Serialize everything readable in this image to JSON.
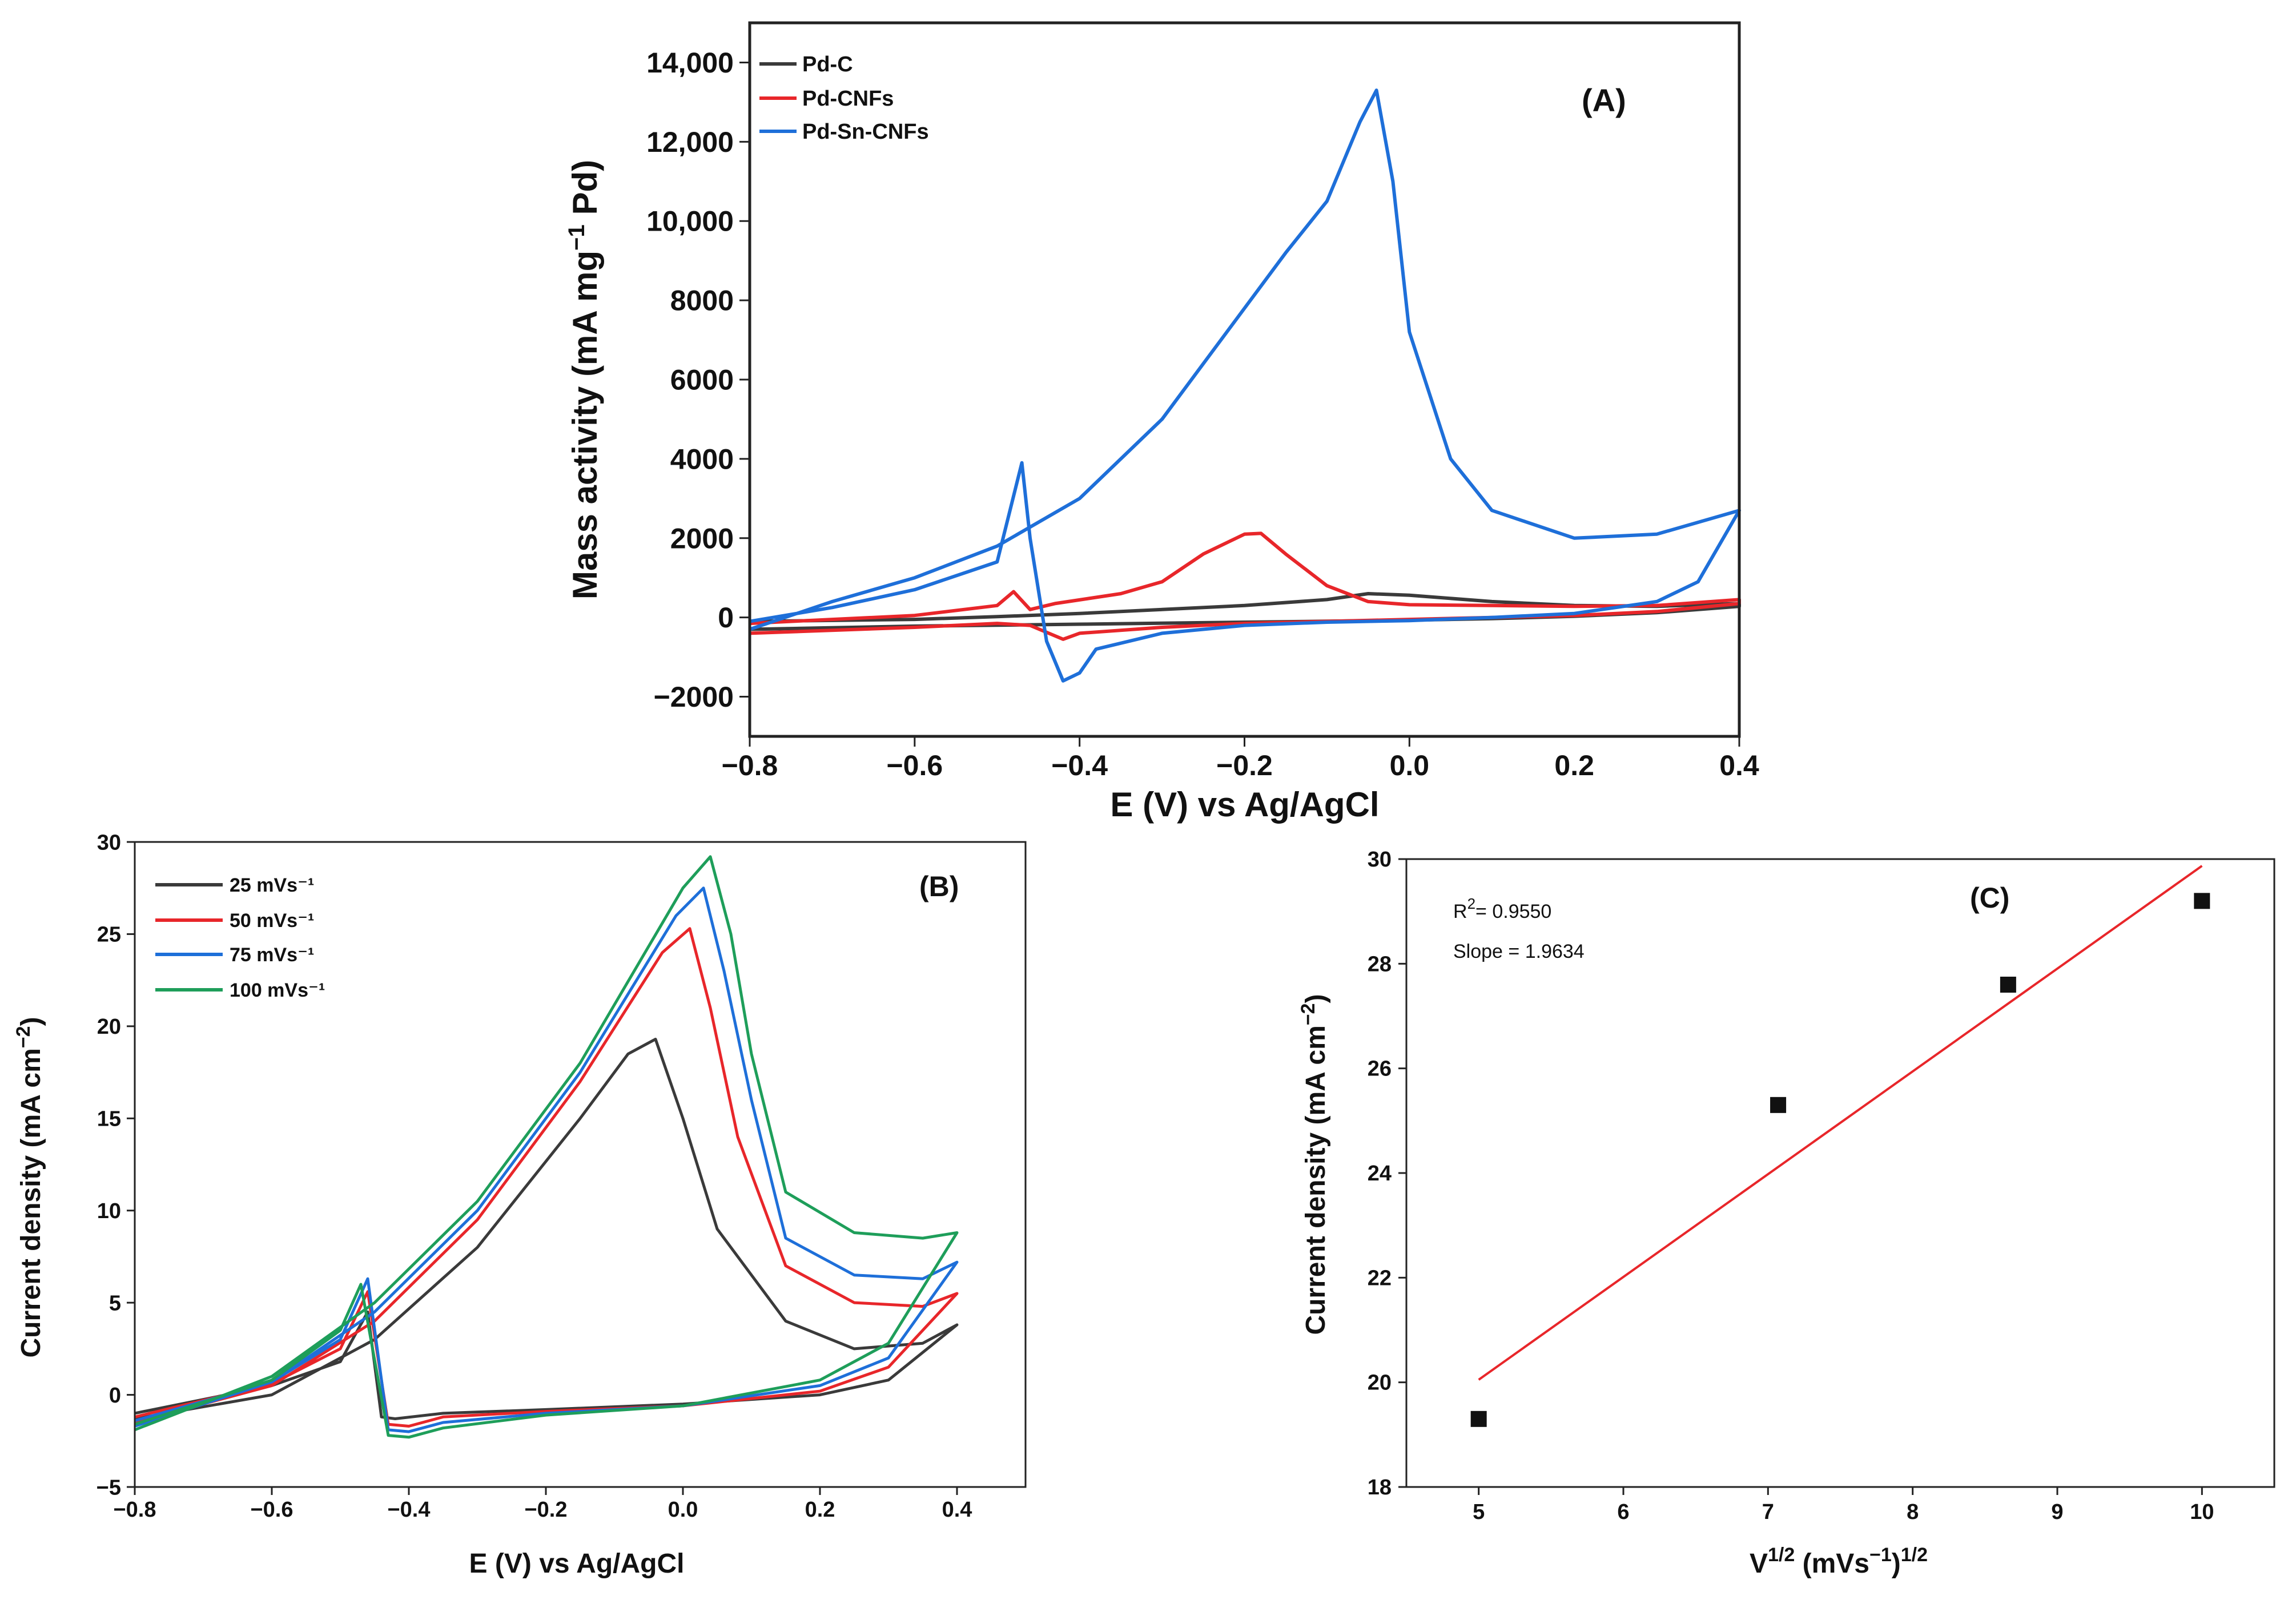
{
  "chart_data": [
    {
      "panel": "(A)",
      "type": "line",
      "xlabel": "E (V) vs Ag/AgCl",
      "ylabel": "Mass activity (mA mg⁻¹ Pd)",
      "xlim": [
        -0.8,
        0.4
      ],
      "ylim": [
        -3000,
        15000
      ],
      "xticks": [
        -0.8,
        -0.6,
        -0.4,
        -0.2,
        0.0,
        0.4
      ],
      "xtick_labels": [
        "−0.8",
        "−0.6",
        "−0.4",
        "−0.2",
        "0.0",
        "0.4"
      ],
      "extra_xtick_labels": [
        {
          "x": 0.2,
          "label": "0.2"
        }
      ],
      "yticks": [
        -2000,
        0,
        2000,
        4000,
        6000,
        8000,
        10000,
        12000,
        14000
      ],
      "ytick_labels": [
        "−2000",
        "0",
        "2000",
        "4000",
        "6000",
        "8000",
        "10,000",
        "12,000",
        "14,000"
      ],
      "legend_position": "top-left",
      "series": [
        {
          "name": "Pd-C",
          "color": "#3a3a3a",
          "points": [
            [
              -0.8,
              -100
            ],
            [
              -0.6,
              -50
            ],
            [
              -0.5,
              20
            ],
            [
              -0.4,
              100
            ],
            [
              -0.3,
              200
            ],
            [
              -0.2,
              300
            ],
            [
              -0.1,
              450
            ],
            [
              -0.05,
              600
            ],
            [
              0.0,
              560
            ],
            [
              0.1,
              400
            ],
            [
              0.2,
              300
            ],
            [
              0.3,
              280
            ],
            [
              0.4,
              350
            ],
            [
              0.4,
              280
            ],
            [
              0.3,
              120
            ],
            [
              0.2,
              30
            ],
            [
              0.1,
              -30
            ],
            [
              0.0,
              -70
            ],
            [
              -0.2,
              -120
            ],
            [
              -0.4,
              -170
            ],
            [
              -0.6,
              -220
            ],
            [
              -0.8,
              -300
            ]
          ]
        },
        {
          "name": "Pd-CNFs",
          "color": "#e8262a",
          "points": [
            [
              -0.8,
              -150
            ],
            [
              -0.6,
              50
            ],
            [
              -0.5,
              300
            ],
            [
              -0.48,
              650
            ],
            [
              -0.46,
              200
            ],
            [
              -0.43,
              350
            ],
            [
              -0.35,
              600
            ],
            [
              -0.3,
              900
            ],
            [
              -0.25,
              1600
            ],
            [
              -0.2,
              2100
            ],
            [
              -0.18,
              2120
            ],
            [
              -0.15,
              1600
            ],
            [
              -0.1,
              800
            ],
            [
              -0.05,
              400
            ],
            [
              0.0,
              320
            ],
            [
              0.1,
              300
            ],
            [
              0.2,
              280
            ],
            [
              0.3,
              300
            ],
            [
              0.4,
              450
            ],
            [
              0.4,
              350
            ],
            [
              0.3,
              150
            ],
            [
              0.2,
              50
            ],
            [
              0.1,
              0
            ],
            [
              0.0,
              -50
            ],
            [
              -0.1,
              -100
            ],
            [
              -0.2,
              -150
            ],
            [
              -0.3,
              -250
            ],
            [
              -0.4,
              -400
            ],
            [
              -0.42,
              -550
            ],
            [
              -0.46,
              -200
            ],
            [
              -0.5,
              -150
            ],
            [
              -0.6,
              -250
            ],
            [
              -0.8,
              -400
            ]
          ]
        },
        {
          "name": "Pd-Sn-CNFs",
          "color": "#1e6fd9",
          "points": [
            [
              -0.8,
              -100
            ],
            [
              -0.7,
              250
            ],
            [
              -0.6,
              700
            ],
            [
              -0.5,
              1400
            ],
            [
              -0.47,
              3900
            ],
            [
              -0.46,
              2000
            ],
            [
              -0.44,
              -600
            ],
            [
              -0.42,
              -1600
            ],
            [
              -0.4,
              -1400
            ],
            [
              -0.38,
              -800
            ],
            [
              -0.3,
              -400
            ],
            [
              -0.2,
              -200
            ],
            [
              -0.1,
              -120
            ],
            [
              0.0,
              -80
            ],
            [
              0.1,
              0
            ],
            [
              0.2,
              100
            ],
            [
              0.3,
              400
            ],
            [
              0.35,
              900
            ],
            [
              0.4,
              2700
            ],
            [
              0.3,
              2100
            ],
            [
              0.2,
              2000
            ],
            [
              0.1,
              2700
            ],
            [
              0.05,
              4000
            ],
            [
              0.0,
              7200
            ],
            [
              -0.02,
              11000
            ],
            [
              -0.04,
              13300
            ],
            [
              -0.06,
              12500
            ],
            [
              -0.1,
              10500
            ],
            [
              -0.15,
              9200
            ],
            [
              -0.2,
              7800
            ],
            [
              -0.3,
              5000
            ],
            [
              -0.4,
              3000
            ],
            [
              -0.5,
              1800
            ],
            [
              -0.6,
              1000
            ],
            [
              -0.7,
              400
            ],
            [
              -0.8,
              -300
            ]
          ]
        }
      ]
    },
    {
      "panel": "(B)",
      "type": "line",
      "xlabel": "E (V) vs Ag/AgCl",
      "ylabel": "Current density (mA cm⁻²)",
      "xlim": [
        -0.8,
        0.5
      ],
      "ylim": [
        -5,
        30
      ],
      "xticks": [
        -0.8,
        -0.6,
        -0.4,
        -0.2,
        0.0,
        0.2,
        0.4
      ],
      "xtick_labels": [
        "−0.8",
        "−0.6",
        "−0.4",
        "−0.2",
        "0.0",
        "0.2",
        "0.4"
      ],
      "yticks": [
        -5,
        0,
        5,
        10,
        15,
        20,
        25,
        30
      ],
      "ytick_labels": [
        "−5",
        "0",
        "5",
        "10",
        "15",
        "20",
        "25",
        "30"
      ],
      "legend_position": "top-left",
      "series": [
        {
          "name": "25 mVs⁻¹",
          "color": "#3a3a3a",
          "points": [
            [
              -0.8,
              -1.0
            ],
            [
              -0.6,
              0.5
            ],
            [
              -0.5,
              1.8
            ],
            [
              -0.46,
              4.5
            ],
            [
              -0.44,
              -1.2
            ],
            [
              -0.42,
              -1.3
            ],
            [
              -0.35,
              -1.0
            ],
            [
              -0.2,
              -0.8
            ],
            [
              0.0,
              -0.5
            ],
            [
              0.2,
              0.0
            ],
            [
              0.3,
              0.8
            ],
            [
              0.4,
              3.8
            ],
            [
              0.35,
              2.8
            ],
            [
              0.25,
              2.5
            ],
            [
              0.15,
              4.0
            ],
            [
              0.05,
              9.0
            ],
            [
              0.0,
              15.0
            ],
            [
              -0.04,
              19.3
            ],
            [
              -0.08,
              18.5
            ],
            [
              -0.15,
              15.0
            ],
            [
              -0.3,
              8.0
            ],
            [
              -0.45,
              3.0
            ],
            [
              -0.6,
              0.0
            ],
            [
              -0.8,
              -1.3
            ]
          ]
        },
        {
          "name": "50 mVs⁻¹",
          "color": "#e8262a",
          "points": [
            [
              -0.8,
              -1.2
            ],
            [
              -0.6,
              0.6
            ],
            [
              -0.5,
              2.5
            ],
            [
              -0.46,
              5.6
            ],
            [
              -0.43,
              -1.6
            ],
            [
              -0.4,
              -1.7
            ],
            [
              -0.35,
              -1.2
            ],
            [
              -0.2,
              -0.9
            ],
            [
              0.0,
              -0.6
            ],
            [
              0.2,
              0.2
            ],
            [
              0.3,
              1.5
            ],
            [
              0.4,
              5.5
            ],
            [
              0.35,
              4.8
            ],
            [
              0.25,
              5.0
            ],
            [
              0.15,
              7.0
            ],
            [
              0.08,
              14.0
            ],
            [
              0.04,
              21.0
            ],
            [
              0.01,
              25.3
            ],
            [
              -0.03,
              24.0
            ],
            [
              -0.15,
              17.0
            ],
            [
              -0.3,
              9.5
            ],
            [
              -0.45,
              4.0
            ],
            [
              -0.6,
              0.5
            ],
            [
              -0.8,
              -1.5
            ]
          ]
        },
        {
          "name": "75 mVs⁻¹",
          "color": "#1e6fd9",
          "points": [
            [
              -0.8,
              -1.4
            ],
            [
              -0.6,
              0.7
            ],
            [
              -0.5,
              3.0
            ],
            [
              -0.46,
              6.3
            ],
            [
              -0.43,
              -1.9
            ],
            [
              -0.4,
              -2.0
            ],
            [
              -0.35,
              -1.5
            ],
            [
              -0.2,
              -1.0
            ],
            [
              0.0,
              -0.6
            ],
            [
              0.2,
              0.5
            ],
            [
              0.3,
              2.0
            ],
            [
              0.4,
              7.2
            ],
            [
              0.35,
              6.3
            ],
            [
              0.25,
              6.5
            ],
            [
              0.15,
              8.5
            ],
            [
              0.1,
              16.0
            ],
            [
              0.06,
              23.0
            ],
            [
              0.03,
              27.5
            ],
            [
              -0.01,
              26.0
            ],
            [
              -0.15,
              17.5
            ],
            [
              -0.3,
              10.0
            ],
            [
              -0.45,
              4.5
            ],
            [
              -0.6,
              0.7
            ],
            [
              -0.8,
              -1.7
            ]
          ]
        },
        {
          "name": "100 mVs⁻¹",
          "color": "#1e9e5a",
          "points": [
            [
              -0.8,
              -1.6
            ],
            [
              -0.6,
              0.8
            ],
            [
              -0.5,
              3.5
            ],
            [
              -0.47,
              6.0
            ],
            [
              -0.43,
              -2.2
            ],
            [
              -0.4,
              -2.3
            ],
            [
              -0.35,
              -1.8
            ],
            [
              -0.2,
              -1.1
            ],
            [
              0.0,
              -0.6
            ],
            [
              0.2,
              0.8
            ],
            [
              0.3,
              2.8
            ],
            [
              0.4,
              8.8
            ],
            [
              0.35,
              8.5
            ],
            [
              0.25,
              8.8
            ],
            [
              0.15,
              11.0
            ],
            [
              0.1,
              18.5
            ],
            [
              0.07,
              25.0
            ],
            [
              0.04,
              29.2
            ],
            [
              0.0,
              27.5
            ],
            [
              -0.15,
              18.0
            ],
            [
              -0.3,
              10.5
            ],
            [
              -0.45,
              5.0
            ],
            [
              -0.6,
              1.0
            ],
            [
              -0.8,
              -1.9
            ]
          ]
        }
      ]
    },
    {
      "panel": "(C)",
      "type": "scatter",
      "xlabel": "V¹ᐟ² (mVs⁻¹)¹ᐟ²",
      "ylabel": "Current density (mA cm⁻²)",
      "xlim": [
        4.5,
        10.5
      ],
      "ylim": [
        18,
        30
      ],
      "xticks": [
        5,
        6,
        7,
        8,
        9,
        10
      ],
      "yticks": [
        18,
        20,
        22,
        24,
        26,
        28,
        30
      ],
      "points": [
        [
          5.0,
          19.3
        ],
        [
          7.07,
          25.3
        ],
        [
          8.66,
          27.6
        ],
        [
          10.0,
          29.2
        ]
      ],
      "fit_line": {
        "color": "#e8262a",
        "x": [
          5.0,
          10.0
        ],
        "y": [
          20.05,
          29.87
        ]
      },
      "annotations": {
        "r2": "= 0.9550",
        "r2_prefix": "R",
        "r2_sup": "2",
        "slope": "Slope = 1.9634"
      }
    }
  ]
}
